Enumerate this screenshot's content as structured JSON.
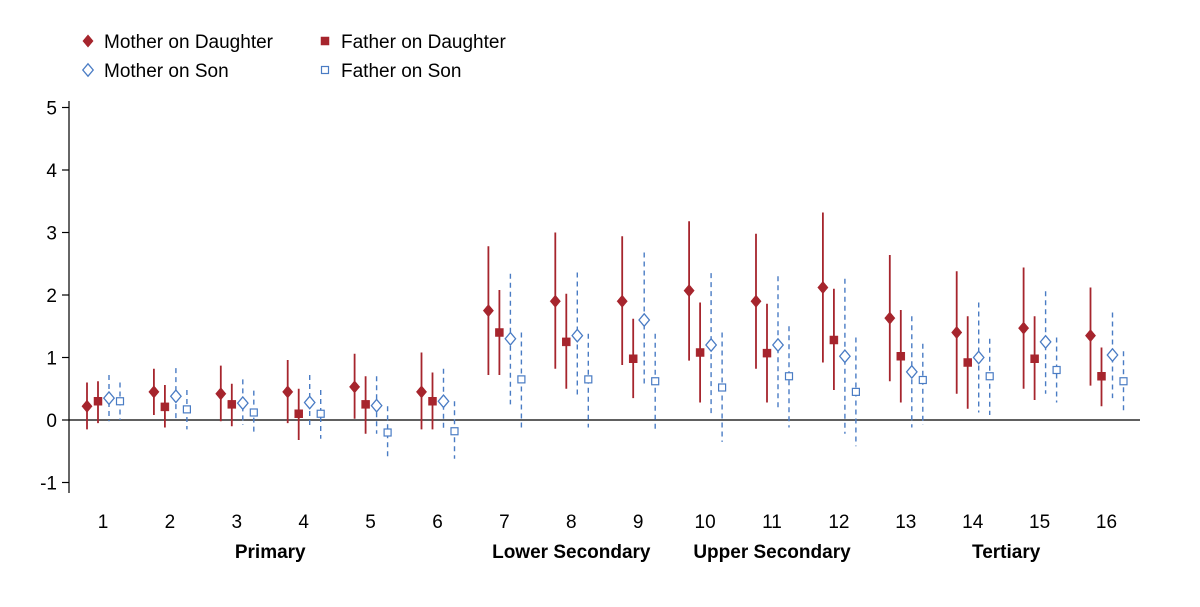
{
  "chart_data": {
    "type": "scatter",
    "title": "",
    "xlabel": "",
    "ylabel": "",
    "ylim": [
      -1,
      5
    ],
    "yticks": [
      -1,
      0,
      1,
      2,
      3,
      4,
      5
    ],
    "categories": [
      "1",
      "2",
      "3",
      "4",
      "5",
      "6",
      "7",
      "8",
      "9",
      "10",
      "11",
      "12",
      "13",
      "14",
      "15",
      "16"
    ],
    "groups": [
      {
        "label": "Primary",
        "from": 1,
        "to": 6
      },
      {
        "label": "Lower Secondary",
        "from": 7,
        "to": 9
      },
      {
        "label": "Upper Secondary",
        "from": 10,
        "to": 12
      },
      {
        "label": "Tertiary",
        "from": 13,
        "to": 16
      }
    ],
    "legend_position": "top-left",
    "series": [
      {
        "name": "Mother on Daughter",
        "color": "#a6252d",
        "marker": "diamond-filled",
        "line_style": "solid",
        "values": [
          0.22,
          0.45,
          0.42,
          0.45,
          0.53,
          0.45,
          1.75,
          1.9,
          1.9,
          2.07,
          1.9,
          2.12,
          1.63,
          1.4,
          1.47,
          1.35
        ],
        "lower": [
          -0.15,
          0.08,
          -0.02,
          -0.05,
          0.02,
          -0.15,
          0.72,
          0.82,
          0.88,
          0.95,
          0.82,
          0.92,
          0.62,
          0.42,
          0.5,
          0.55
        ],
        "upper": [
          0.6,
          0.82,
          0.87,
          0.96,
          1.06,
          1.08,
          2.78,
          3.0,
          2.94,
          3.18,
          2.98,
          3.32,
          2.64,
          2.38,
          2.44,
          2.12
        ]
      },
      {
        "name": "Father on Daughter",
        "color": "#a6252d",
        "marker": "square-filled",
        "line_style": "solid",
        "values": [
          0.3,
          0.21,
          0.25,
          0.1,
          0.25,
          0.3,
          1.4,
          1.25,
          0.98,
          1.08,
          1.07,
          1.28,
          1.02,
          0.92,
          0.98,
          0.7
        ],
        "lower": [
          -0.05,
          -0.12,
          -0.1,
          -0.32,
          -0.22,
          -0.15,
          0.72,
          0.5,
          0.35,
          0.28,
          0.28,
          0.48,
          0.28,
          0.18,
          0.32,
          0.22
        ],
        "upper": [
          0.62,
          0.56,
          0.58,
          0.5,
          0.7,
          0.76,
          2.08,
          2.02,
          1.62,
          1.88,
          1.86,
          2.1,
          1.76,
          1.66,
          1.66,
          1.16
        ]
      },
      {
        "name": "Mother on Son",
        "color": "#4a7cc4",
        "marker": "diamond-open",
        "line_style": "dashed",
        "values": [
          0.35,
          0.38,
          0.27,
          0.28,
          0.23,
          0.3,
          1.3,
          1.35,
          1.6,
          1.2,
          1.2,
          1.02,
          0.77,
          1.0,
          1.25,
          1.04
        ],
        "lower": [
          -0.02,
          0.0,
          -0.08,
          -0.12,
          -0.22,
          -0.18,
          0.25,
          0.35,
          0.52,
          0.05,
          0.15,
          -0.22,
          -0.12,
          0.12,
          0.42,
          0.35
        ],
        "upper": [
          0.72,
          0.83,
          0.65,
          0.72,
          0.7,
          0.82,
          2.34,
          2.36,
          2.68,
          2.35,
          2.3,
          2.26,
          1.66,
          1.88,
          2.06,
          1.72
        ]
      },
      {
        "name": "Father on Son",
        "color": "#4a7cc4",
        "marker": "square-open",
        "line_style": "dashed",
        "values": [
          0.3,
          0.17,
          0.12,
          0.1,
          -0.2,
          -0.18,
          0.65,
          0.65,
          0.62,
          0.52,
          0.7,
          0.45,
          0.64,
          0.7,
          0.8,
          0.62
        ],
        "lower": [
          0.0,
          -0.15,
          -0.2,
          -0.3,
          -0.62,
          -0.62,
          -0.12,
          -0.12,
          -0.18,
          -0.35,
          -0.12,
          -0.42,
          -0.08,
          0.08,
          0.28,
          0.15
        ],
        "upper": [
          0.6,
          0.48,
          0.47,
          0.48,
          0.22,
          0.3,
          1.4,
          1.38,
          1.38,
          1.4,
          1.5,
          1.32,
          1.22,
          1.3,
          1.32,
          1.1
        ]
      }
    ]
  }
}
